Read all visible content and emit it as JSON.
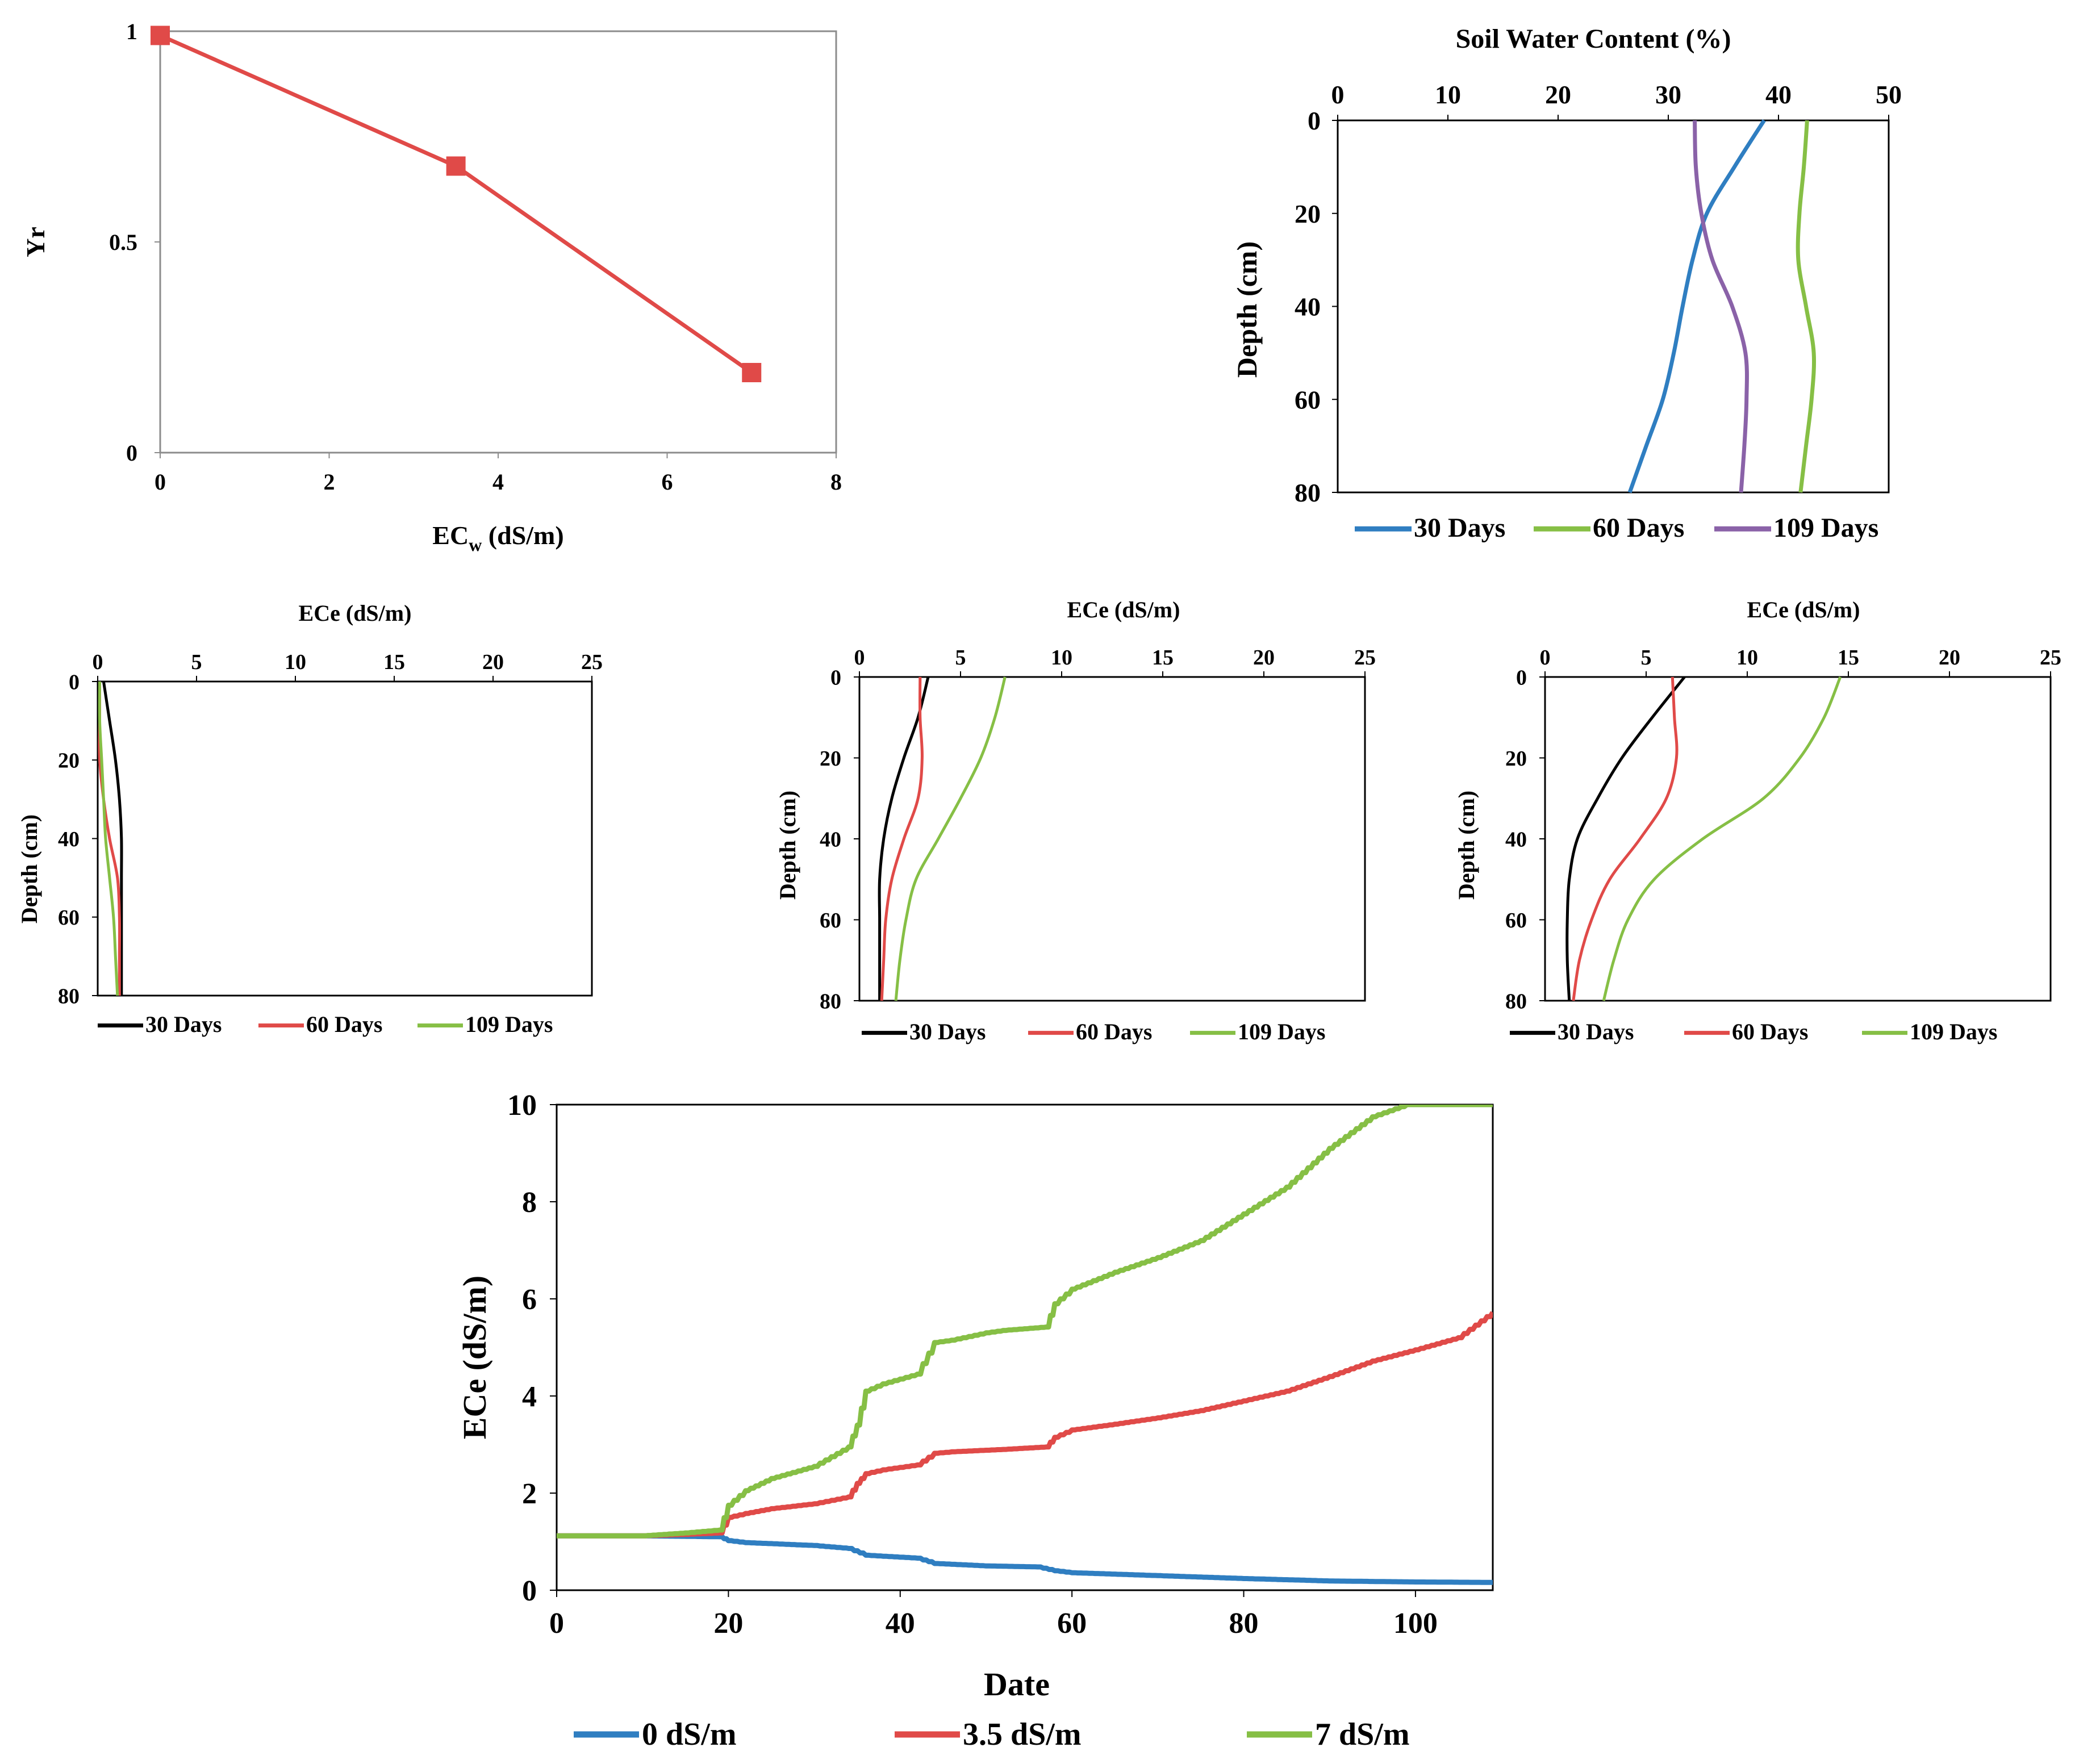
{
  "colors": {
    "red": "#e04a48",
    "blue": "#2f7ec1",
    "green": "#86bf45",
    "purple": "#8a62a8",
    "black": "#000000"
  },
  "chart_data": [
    {
      "id": "yr",
      "type": "line",
      "title": "",
      "xlabel": "EC",
      "xlabel_sub": "w",
      "xlabel_unit": " (dS/m)",
      "ylabel": "Yr",
      "xlim": [
        0,
        8
      ],
      "ylim": [
        0,
        1
      ],
      "xticks": [
        0,
        2,
        4,
        6,
        8
      ],
      "yticks": [
        0,
        0.5,
        1
      ],
      "series": [
        {
          "name": "Yr",
          "color": "red",
          "markers": true,
          "x": [
            0,
            3.5,
            7
          ],
          "y": [
            0.99,
            0.68,
            0.19
          ]
        }
      ]
    },
    {
      "id": "swc",
      "type": "line",
      "title": "Soil Water Content (%)",
      "ylabel": "Depth  (cm)",
      "xlim": [
        0,
        50
      ],
      "ylim": [
        0,
        80
      ],
      "yreversed": true,
      "xticks": [
        0,
        10,
        20,
        30,
        40,
        50
      ],
      "yticks": [
        0,
        20,
        40,
        60,
        80
      ],
      "series": [
        {
          "name": "30 Days",
          "color": "blue",
          "x": [
            38.7,
            36,
            33.5,
            32.2,
            31.3,
            30.5,
            29.5,
            28,
            26.5
          ],
          "depth": [
            0,
            10,
            20,
            30,
            40,
            50,
            60,
            70,
            80
          ]
        },
        {
          "name": "60 Days",
          "color": "green",
          "x": [
            42.6,
            42.3,
            41.9,
            41.8,
            42.5,
            43.2,
            43.0,
            42.5,
            42.0
          ],
          "depth": [
            0,
            10,
            20,
            30,
            40,
            50,
            60,
            70,
            80
          ]
        },
        {
          "name": "109 Days",
          "color": "purple",
          "x": [
            32.4,
            32.5,
            33.0,
            34.0,
            35.8,
            37.0,
            37.1,
            36.9,
            36.6
          ],
          "depth": [
            0,
            10,
            20,
            30,
            40,
            50,
            60,
            70,
            80
          ]
        }
      ]
    },
    {
      "id": "ece0",
      "type": "line",
      "title": "ECe (dS/m)",
      "ylabel": "Depth  (cm)",
      "xlim": [
        0,
        25
      ],
      "ylim": [
        0,
        80
      ],
      "yreversed": true,
      "xticks": [
        0,
        5,
        10,
        15,
        20,
        25
      ],
      "yticks": [
        0,
        20,
        40,
        60,
        80
      ],
      "series": [
        {
          "name": "30 Days",
          "color": "black",
          "x": [
            0.3,
            0.6,
            0.9,
            1.1,
            1.2,
            1.2,
            1.2,
            1.2,
            1.2
          ],
          "depth": [
            0,
            10,
            20,
            30,
            40,
            50,
            60,
            70,
            80
          ]
        },
        {
          "name": "60 Days",
          "color": "red",
          "x": [
            0.1,
            0.1,
            0.1,
            0.3,
            0.6,
            1.0,
            1.1,
            1.1,
            1.1
          ],
          "depth": [
            0,
            10,
            20,
            30,
            40,
            50,
            60,
            70,
            80
          ]
        },
        {
          "name": "109 Days",
          "color": "green",
          "x": [
            0.1,
            0.1,
            0.2,
            0.3,
            0.4,
            0.6,
            0.8,
            0.9,
            1.0
          ],
          "depth": [
            0,
            10,
            20,
            30,
            40,
            50,
            60,
            70,
            80
          ]
        }
      ]
    },
    {
      "id": "ece35",
      "type": "line",
      "title": "ECe (dS/m)",
      "ylabel": "Depth (cm)",
      "xlim": [
        0,
        25
      ],
      "ylim": [
        0,
        80
      ],
      "yreversed": true,
      "xticks": [
        0,
        5,
        10,
        15,
        20,
        25
      ],
      "yticks": [
        0,
        20,
        40,
        60,
        80
      ],
      "series": [
        {
          "name": "30 Days",
          "color": "black",
          "x": [
            3.4,
            2.9,
            2.2,
            1.6,
            1.2,
            1.0,
            1.0,
            1.0,
            1.0
          ],
          "depth": [
            0,
            10,
            20,
            30,
            40,
            50,
            60,
            70,
            80
          ]
        },
        {
          "name": "60 Days",
          "color": "red",
          "x": [
            3.0,
            3.0,
            3.1,
            2.9,
            2.2,
            1.6,
            1.3,
            1.2,
            1.1
          ],
          "depth": [
            0,
            10,
            20,
            30,
            40,
            50,
            60,
            70,
            80
          ]
        },
        {
          "name": "109 Days",
          "color": "green",
          "x": [
            7.2,
            6.7,
            6.0,
            5.0,
            3.9,
            2.8,
            2.3,
            2.0,
            1.8
          ],
          "depth": [
            0,
            10,
            20,
            30,
            40,
            50,
            60,
            70,
            80
          ]
        }
      ]
    },
    {
      "id": "ece7",
      "type": "line",
      "title": "ECe (dS/m)",
      "ylabel": "Depth (cm)",
      "xlim": [
        0,
        25
      ],
      "ylim": [
        0,
        80
      ],
      "yreversed": true,
      "xticks": [
        0,
        5,
        10,
        15,
        20,
        25
      ],
      "yticks": [
        0,
        20,
        40,
        60,
        80
      ],
      "series": [
        {
          "name": "30 Days",
          "color": "black",
          "x": [
            6.9,
            5.3,
            3.8,
            2.6,
            1.6,
            1.2,
            1.1,
            1.1,
            1.2
          ],
          "depth": [
            0,
            10,
            20,
            30,
            40,
            50,
            60,
            70,
            80
          ]
        },
        {
          "name": "60 Days",
          "color": "red",
          "x": [
            6.3,
            6.4,
            6.5,
            6.0,
            4.7,
            3.2,
            2.3,
            1.7,
            1.4
          ],
          "depth": [
            0,
            10,
            20,
            30,
            40,
            50,
            60,
            70,
            80
          ]
        },
        {
          "name": "109 Days",
          "color": "green",
          "x": [
            14.6,
            13.8,
            12.6,
            10.8,
            7.8,
            5.4,
            4.1,
            3.4,
            2.9
          ],
          "depth": [
            0,
            10,
            20,
            30,
            40,
            50,
            60,
            70,
            80
          ]
        }
      ]
    },
    {
      "id": "time",
      "type": "line",
      "title": "",
      "xlabel": "Date",
      "ylabel": "ECe (dS/m)",
      "xlim": [
        0,
        109
      ],
      "ylim": [
        0,
        10
      ],
      "xticks": [
        0,
        20,
        40,
        60,
        80,
        100
      ],
      "yticks": [
        0,
        2,
        4,
        6,
        8,
        10
      ],
      "series": [
        {
          "name": "0 dS/m",
          "color": "blue",
          "x": [
            0,
            10,
            19,
            20,
            22,
            30,
            34,
            36,
            42,
            44,
            50,
            56,
            58,
            60,
            70,
            80,
            90,
            100,
            109
          ],
          "y": [
            1.12,
            1.12,
            1.1,
            1.02,
            0.98,
            0.92,
            0.86,
            0.72,
            0.66,
            0.55,
            0.5,
            0.48,
            0.4,
            0.36,
            0.3,
            0.24,
            0.19,
            0.17,
            0.16
          ]
        },
        {
          "name": "3.5 dS/m",
          "color": "red",
          "x": [
            0,
            10,
            15,
            19,
            20,
            22,
            25,
            30,
            34,
            35,
            36,
            38,
            42,
            44,
            46,
            52,
            57,
            58,
            60,
            65,
            70,
            75,
            80,
            85,
            90,
            95,
            100,
            105,
            109
          ],
          "y": [
            1.12,
            1.12,
            1.15,
            1.18,
            1.5,
            1.58,
            1.68,
            1.78,
            1.92,
            2.2,
            2.4,
            2.48,
            2.58,
            2.82,
            2.85,
            2.9,
            2.95,
            3.15,
            3.3,
            3.42,
            3.55,
            3.7,
            3.9,
            4.1,
            4.4,
            4.72,
            4.95,
            5.2,
            5.72
          ]
        },
        {
          "name": "7 dS/m",
          "color": "green",
          "x": [
            0,
            10,
            15,
            19,
            20,
            22,
            25,
            30,
            34,
            35,
            36,
            38,
            42,
            44,
            46,
            50,
            52,
            57,
            58,
            60,
            65,
            70,
            75,
            80,
            85,
            90,
            95,
            99,
            109
          ],
          "y": [
            1.12,
            1.12,
            1.18,
            1.24,
            1.75,
            2.05,
            2.3,
            2.55,
            2.95,
            3.4,
            4.1,
            4.25,
            4.45,
            5.1,
            5.15,
            5.3,
            5.35,
            5.42,
            5.9,
            6.2,
            6.55,
            6.85,
            7.2,
            7.75,
            8.3,
            9.1,
            9.75,
            10.0,
            10.0
          ]
        }
      ]
    }
  ]
}
